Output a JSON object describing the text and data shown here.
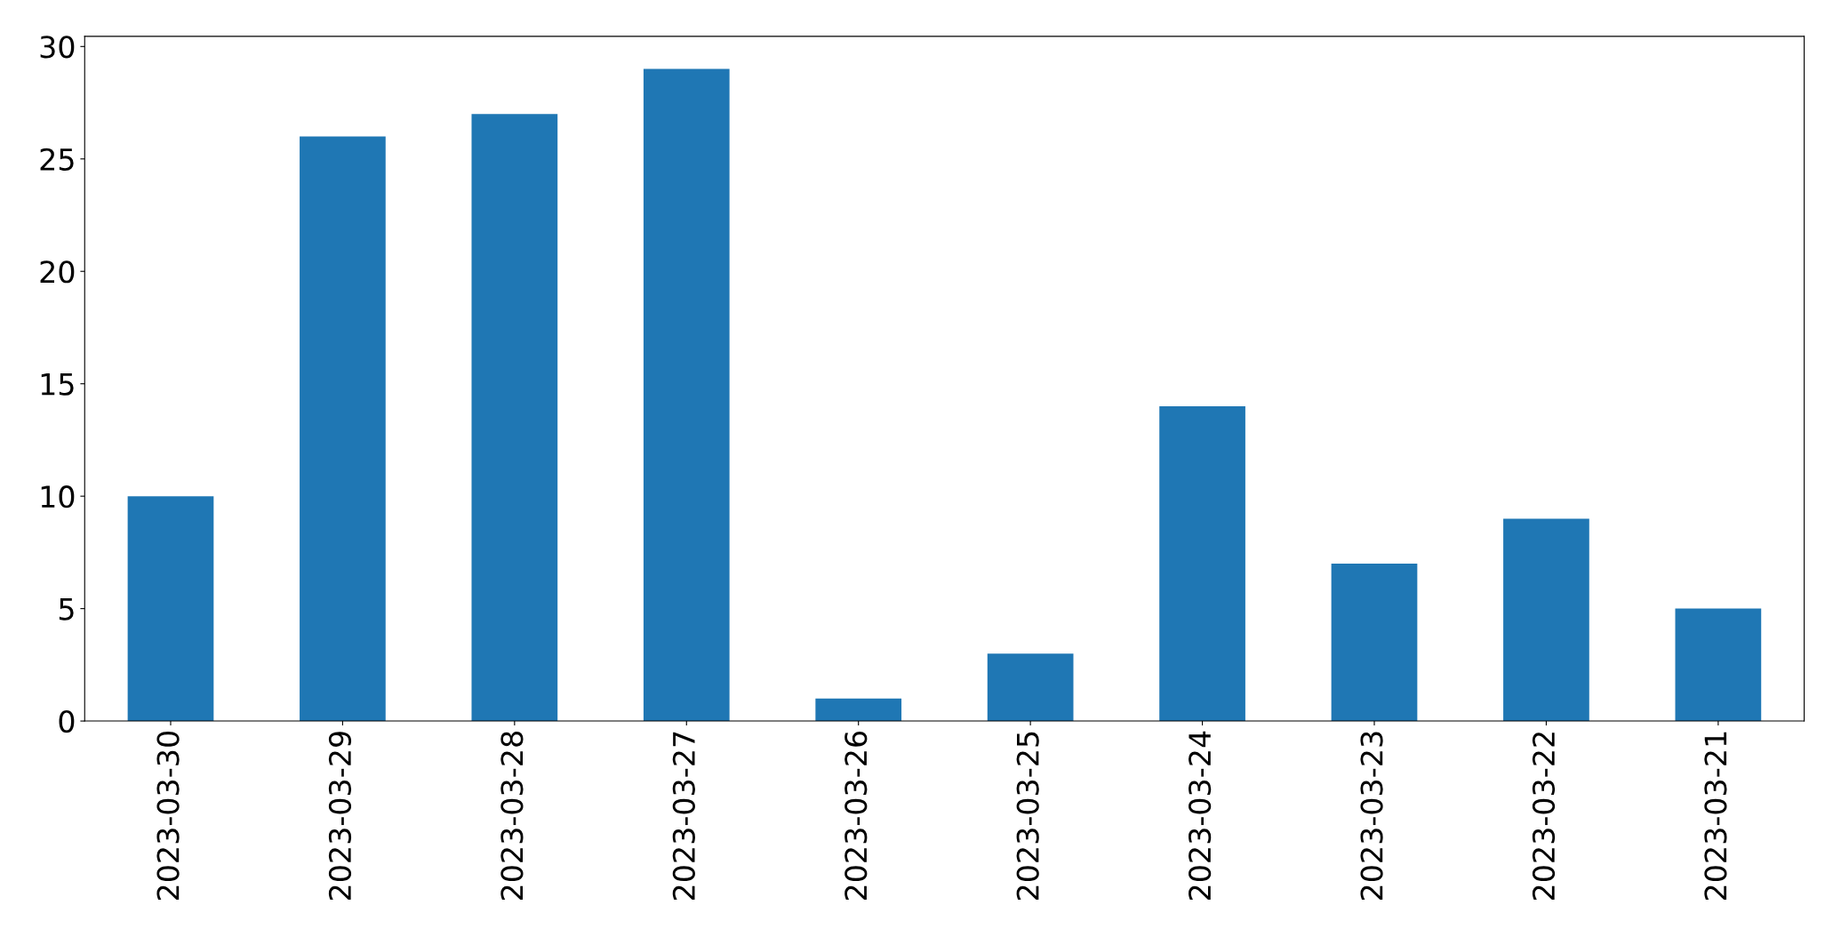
{
  "chart_data": {
    "type": "bar",
    "categories": [
      "2023-03-30",
      "2023-03-29",
      "2023-03-28",
      "2023-03-27",
      "2023-03-26",
      "2023-03-25",
      "2023-03-24",
      "2023-03-23",
      "2023-03-22",
      "2023-03-21"
    ],
    "values": [
      10,
      26,
      27,
      29,
      1,
      3,
      14,
      7,
      9,
      5
    ],
    "color": "#1f77b4",
    "ylim": [
      0,
      30.45
    ],
    "yticks": [
      0,
      5,
      10,
      15,
      20,
      25,
      30
    ],
    "grid": false
  }
}
